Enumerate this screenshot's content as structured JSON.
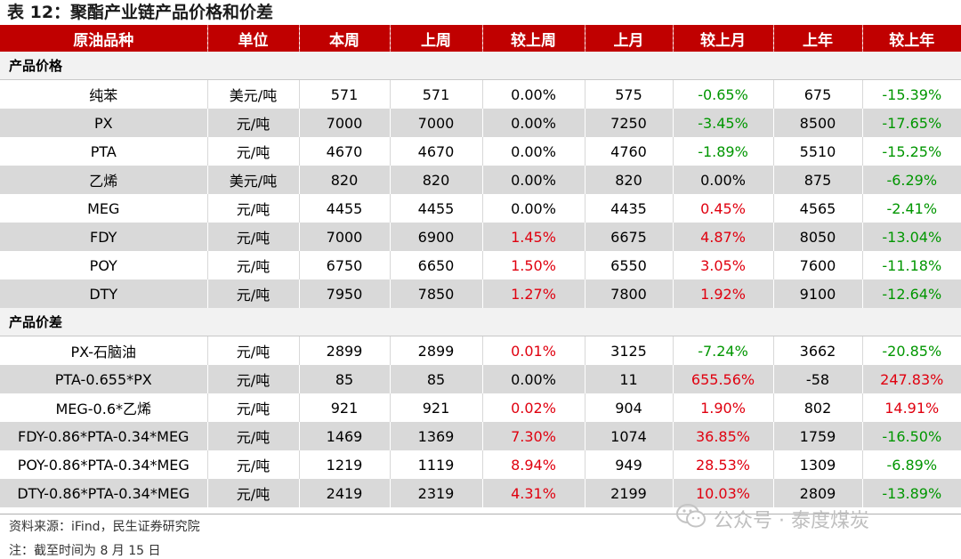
{
  "title": "表 12：聚酯产业链产品价格和价差",
  "header": [
    "原油品种",
    "单位",
    "本周",
    "上周",
    "较上周",
    "上月",
    "较上月",
    "上年",
    "较上年"
  ],
  "sections": [
    {
      "label": "产品价格",
      "rows": [
        {
          "name": "纯苯",
          "unit": "美元/吨",
          "this_week": "571",
          "last_week": "571",
          "wow": "0.00%",
          "wow_color": "black",
          "last_month": "575",
          "mom": "-0.65%",
          "mom_color": "green",
          "last_year": "675",
          "yoy": "-15.39%",
          "yoy_color": "green"
        },
        {
          "name": "PX",
          "unit": "元/吨",
          "this_week": "7000",
          "last_week": "7000",
          "wow": "0.00%",
          "wow_color": "black",
          "last_month": "7250",
          "mom": "-3.45%",
          "mom_color": "green",
          "last_year": "8500",
          "yoy": "-17.65%",
          "yoy_color": "green"
        },
        {
          "name": "PTA",
          "unit": "元/吨",
          "this_week": "4670",
          "last_week": "4670",
          "wow": "0.00%",
          "wow_color": "black",
          "last_month": "4760",
          "mom": "-1.89%",
          "mom_color": "green",
          "last_year": "5510",
          "yoy": "-15.25%",
          "yoy_color": "green"
        },
        {
          "name": "乙烯",
          "unit": "美元/吨",
          "this_week": "820",
          "last_week": "820",
          "wow": "0.00%",
          "wow_color": "black",
          "last_month": "820",
          "mom": "0.00%",
          "mom_color": "black",
          "last_year": "875",
          "yoy": "-6.29%",
          "yoy_color": "green"
        },
        {
          "name": "MEG",
          "unit": "元/吨",
          "this_week": "4455",
          "last_week": "4455",
          "wow": "0.00%",
          "wow_color": "black",
          "last_month": "4435",
          "mom": "0.45%",
          "mom_color": "red",
          "last_year": "4565",
          "yoy": "-2.41%",
          "yoy_color": "green"
        },
        {
          "name": "FDY",
          "unit": "元/吨",
          "this_week": "7000",
          "last_week": "6900",
          "wow": "1.45%",
          "wow_color": "red",
          "last_month": "6675",
          "mom": "4.87%",
          "mom_color": "red",
          "last_year": "8050",
          "yoy": "-13.04%",
          "yoy_color": "green"
        },
        {
          "name": "POY",
          "unit": "元/吨",
          "this_week": "6750",
          "last_week": "6650",
          "wow": "1.50%",
          "wow_color": "red",
          "last_month": "6550",
          "mom": "3.05%",
          "mom_color": "red",
          "last_year": "7600",
          "yoy": "-11.18%",
          "yoy_color": "green"
        },
        {
          "name": "DTY",
          "unit": "元/吨",
          "this_week": "7950",
          "last_week": "7850",
          "wow": "1.27%",
          "wow_color": "red",
          "last_month": "7800",
          "mom": "1.92%",
          "mom_color": "red",
          "last_year": "9100",
          "yoy": "-12.64%",
          "yoy_color": "green"
        }
      ]
    },
    {
      "label": "产品价差",
      "rows": [
        {
          "name": "PX-石脑油",
          "unit": "元/吨",
          "this_week": "2899",
          "last_week": "2899",
          "wow": "0.01%",
          "wow_color": "red",
          "last_month": "3125",
          "mom": "-7.24%",
          "mom_color": "green",
          "last_year": "3662",
          "yoy": "-20.85%",
          "yoy_color": "green"
        },
        {
          "name": "PTA-0.655*PX",
          "unit": "元/吨",
          "this_week": "85",
          "last_week": "85",
          "wow": "0.00%",
          "wow_color": "black",
          "last_month": "11",
          "mom": "655.56%",
          "mom_color": "red",
          "last_year": "-58",
          "yoy": "247.83%",
          "yoy_color": "red"
        },
        {
          "name": "MEG-0.6*乙烯",
          "unit": "元/吨",
          "this_week": "921",
          "last_week": "921",
          "wow": "0.02%",
          "wow_color": "red",
          "last_month": "904",
          "mom": "1.90%",
          "mom_color": "red",
          "last_year": "802",
          "yoy": "14.91%",
          "yoy_color": "red"
        },
        {
          "name": "FDY-0.86*PTA-0.34*MEG",
          "unit": "元/吨",
          "this_week": "1469",
          "last_week": "1369",
          "wow": "7.30%",
          "wow_color": "red",
          "last_month": "1074",
          "mom": "36.85%",
          "mom_color": "red",
          "last_year": "1759",
          "yoy": "-16.50%",
          "yoy_color": "green"
        },
        {
          "name": "POY-0.86*PTA-0.34*MEG",
          "unit": "元/吨",
          "this_week": "1219",
          "last_week": "1119",
          "wow": "8.94%",
          "wow_color": "red",
          "last_month": "949",
          "mom": "28.53%",
          "mom_color": "red",
          "last_year": "1309",
          "yoy": "-6.89%",
          "yoy_color": "green"
        },
        {
          "name": "DTY-0.86*PTA-0.34*MEG",
          "unit": "元/吨",
          "this_week": "2419",
          "last_week": "2319",
          "wow": "4.31%",
          "wow_color": "red",
          "last_month": "2199",
          "mom": "10.03%",
          "mom_color": "red",
          "last_year": "2809",
          "yoy": "-13.89%",
          "yoy_color": "green"
        }
      ]
    }
  ],
  "source": "资料来源：iFind，民生证券研究院",
  "note": "注：截至时间为 8 月 15 日",
  "watermark": "公众号 · 泰度煤炭",
  "watermark_icon": "wechat-icon",
  "colors": {
    "header_bg": "#c00000",
    "positive": "#e0000f",
    "negative": "#009600",
    "stripe": "#d9d9d9"
  }
}
